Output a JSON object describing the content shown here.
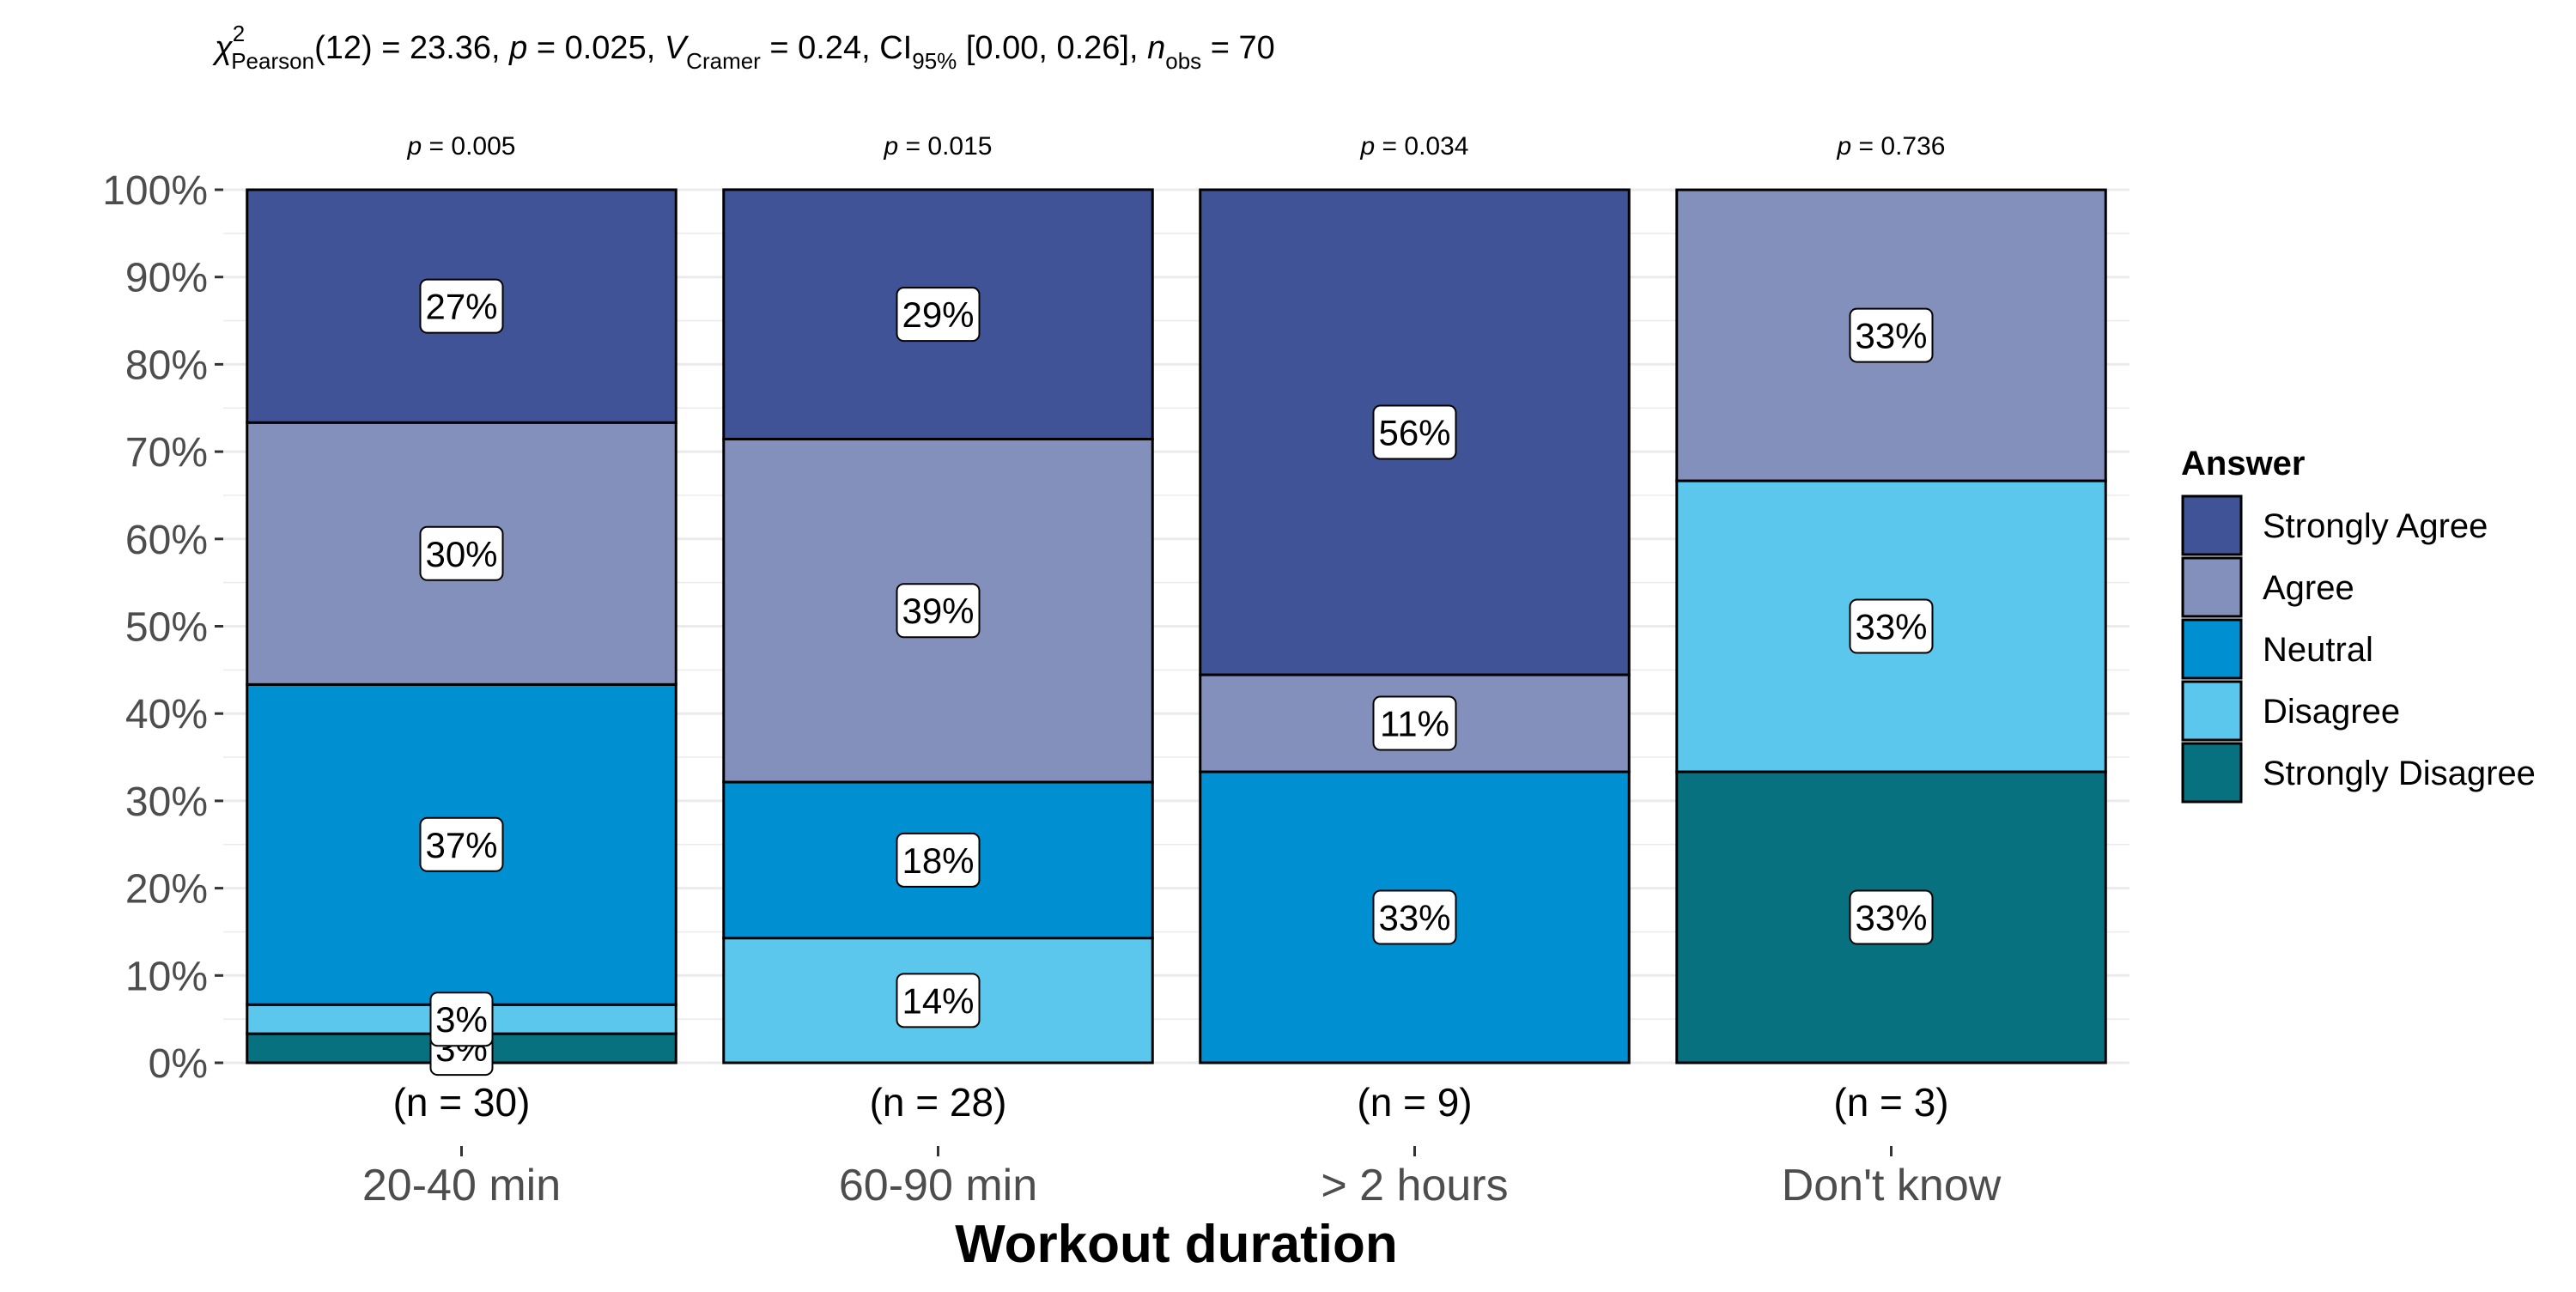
{
  "subtitle": {
    "chi": "χ",
    "chi_sup": "2",
    "chi_sub": "Pearson",
    "part1": "(12) = 23.36, ",
    "p_italic": "p",
    "part2": " = 0.025, ",
    "v_italic": "V",
    "v_hat": "^",
    "v_sub": "Cramer",
    "part3": " = 0.24, CI",
    "ci_sub": "95%",
    "part4": " [0.00, 0.26], ",
    "n_italic": "n",
    "n_sub": "obs",
    "part5": " = 70"
  },
  "chart_data": {
    "type": "bar",
    "stacked": true,
    "percent": true,
    "xlabel": "Workout duration",
    "ylabel": "",
    "ylim": [
      0,
      100
    ],
    "yticks": [
      "0%",
      "10%",
      "20%",
      "30%",
      "40%",
      "50%",
      "60%",
      "70%",
      "80%",
      "90%",
      "100%"
    ],
    "grid": true,
    "legend_title": "Answer",
    "legend_position": "right",
    "categories": [
      "20-40 min",
      "60-90 min",
      "> 2 hours",
      "Don't know"
    ],
    "counts": [
      "(n = 30)",
      "(n = 28)",
      "(n = 9)",
      "(n = 3)"
    ],
    "pvalues": [
      "= 0.005",
      "= 0.015",
      "= 0.034",
      "= 0.736"
    ],
    "p_symbol": "p",
    "series": [
      {
        "name": "Strongly Disagree",
        "color": "#08717f",
        "values": [
          3.33,
          0,
          0,
          33.33
        ],
        "labels": [
          "3%",
          "",
          "",
          "33%"
        ]
      },
      {
        "name": "Disagree",
        "color": "#5bc7ec",
        "values": [
          3.33,
          14.29,
          0,
          33.33
        ],
        "labels": [
          "3%",
          "14%",
          "",
          "33%"
        ]
      },
      {
        "name": "Neutral",
        "color": "#008fd0",
        "values": [
          36.67,
          17.86,
          33.33,
          0
        ],
        "labels": [
          "37%",
          "18%",
          "33%",
          ""
        ]
      },
      {
        "name": "Agree",
        "color": "#8290bb",
        "values": [
          30.0,
          39.29,
          11.11,
          33.33
        ],
        "labels": [
          "30%",
          "39%",
          "11%",
          "33%"
        ]
      },
      {
        "name": "Strongly Agree",
        "color": "#3f5396",
        "values": [
          26.67,
          28.57,
          55.56,
          0
        ],
        "labels": [
          "27%",
          "29%",
          "56%",
          ""
        ]
      }
    ],
    "legend_order": [
      "Strongly Agree",
      "Agree",
      "Neutral",
      "Disagree",
      "Strongly Disagree"
    ]
  }
}
